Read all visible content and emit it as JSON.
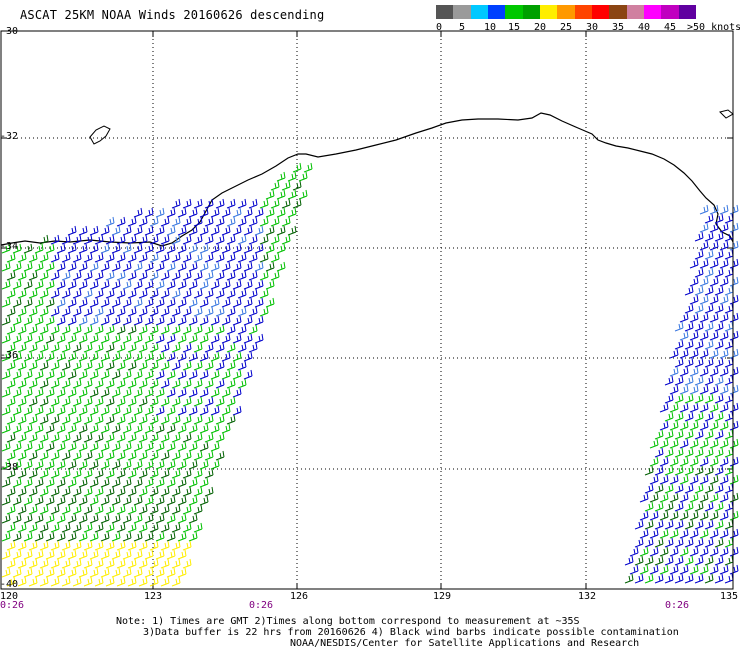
{
  "title": "ASCAT 25KM NOAA Winds 20160626 descending",
  "legend": {
    "colors": [
      "#555555",
      "#9a9a9a",
      "#00c8ff",
      "#0040ff",
      "#00c800",
      "#00a000",
      "#ffee00",
      "#ff9900",
      "#ff4400",
      "#ff0000",
      "#8b4513",
      "#d080a0",
      "#ff00ff",
      "#c000c0",
      "#6000a0"
    ],
    "labels": [
      "0",
      "5",
      "10",
      "15",
      "20",
      "25",
      "30",
      "35",
      "40",
      "45",
      ">50 knots"
    ]
  },
  "map": {
    "lat_labels": [
      "-30",
      "-32",
      "-34",
      "-36",
      "-38",
      "-40"
    ],
    "lon_labels": [
      "120",
      "123",
      "126",
      "129",
      "132",
      "135"
    ],
    "time_labels": [
      "0:26",
      "0:26",
      "0:26"
    ],
    "swath_colors": {
      "blue": "#0000cc",
      "light_blue": "#3a78e0",
      "green": "#00c000",
      "dark_green": "#006000",
      "yellow": "#ffee00",
      "coast": "#000000"
    }
  },
  "notes": {
    "line1": "Note: 1) Times are GMT 2)Times along bottom correspond to measurement at ~35S",
    "line2": "3)Data buffer is 22 hrs from 20160626 4) Black wind barbs indicate possible contamination",
    "line3": "NOAA/NESDIS/Center for Satellite Applications and Research"
  }
}
